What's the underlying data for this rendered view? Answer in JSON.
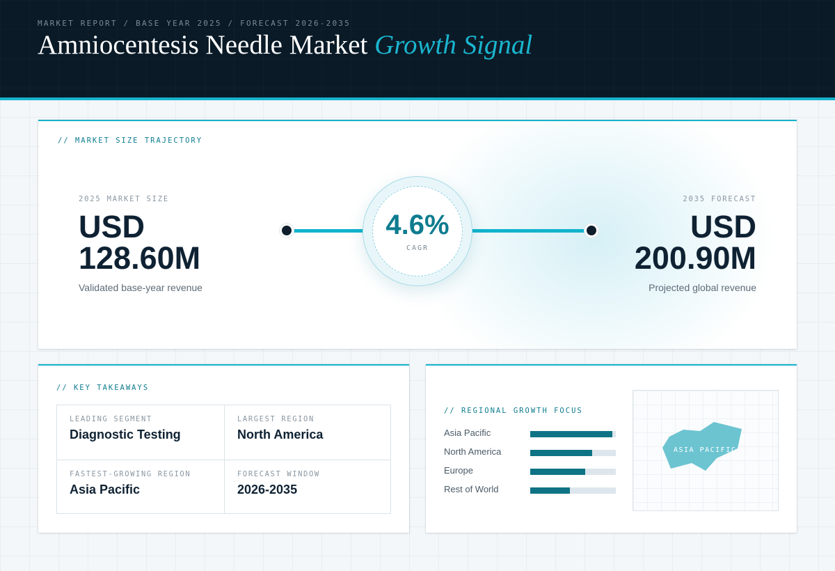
{
  "header": {
    "breadcrumb": "MARKET REPORT / BASE YEAR 2025 / FORECAST 2026-2035",
    "title_main": "Amniocentesis Needle Market",
    "title_accent": "Growth Signal"
  },
  "trajectory": {
    "label": "// MARKET SIZE TRAJECTORY",
    "start": {
      "label": "2025 MARKET SIZE",
      "currency": "USD",
      "value": "128.60M",
      "caption": "Validated base-year revenue"
    },
    "end": {
      "label": "2035 FORECAST",
      "currency": "USD",
      "value": "200.90M",
      "caption": "Projected global revenue"
    },
    "cagr": {
      "value": "4.6%",
      "label": "CAGR"
    }
  },
  "takeaways": {
    "label": "// KEY TAKEAWAYS",
    "items": [
      {
        "key": "LEADING SEGMENT",
        "value": "Diagnostic Testing"
      },
      {
        "key": "LARGEST REGION",
        "value": "North America"
      },
      {
        "key": "FASTEST-GROWING REGION",
        "value": "Asia Pacific"
      },
      {
        "key": "FORECAST WINDOW",
        "value": "2026-2035"
      }
    ]
  },
  "regional": {
    "label": "// REGIONAL GROWTH FOCUS",
    "regions": [
      {
        "name": "Asia Pacific",
        "level": 0.96
      },
      {
        "name": "North America",
        "level": 0.72
      },
      {
        "name": "Europe",
        "level": 0.64
      },
      {
        "name": "Rest of World",
        "level": 0.46
      }
    ],
    "map_label": "ASIA PACIFIC"
  },
  "colors": {
    "accent": "#17b3cc",
    "header_bg": "#0a1a27",
    "bar_fill": "#0e7385",
    "map_region": "#6cc4d1"
  }
}
